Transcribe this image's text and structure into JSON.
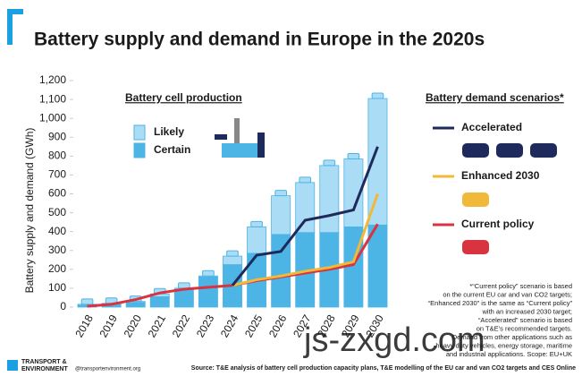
{
  "chart_data": {
    "type": "bar",
    "title": "Battery supply and demand in Europe in the 2020s",
    "y_label": "Battery supply and demand (GWh)",
    "supply_heading": "Battery cell production",
    "demand_heading": "Battery demand scenarios*",
    "categories": [
      "2018",
      "2019",
      "2020",
      "2021",
      "2022",
      "2023",
      "2024",
      "2025",
      "2026",
      "2027",
      "2028",
      "2029",
      "2030"
    ],
    "ylim": [
      0,
      1200
    ],
    "yticks": [
      0,
      100,
      200,
      300,
      400,
      500,
      600,
      700,
      800,
      900,
      {
        "value": 1000,
        "label": "1,000"
      },
      {
        "value": 1100,
        "label": "1,100"
      },
      {
        "value": 1200,
        "label": "1,200"
      }
    ],
    "series": [
      {
        "name": "Certain",
        "type": "bar",
        "color": "#4db4e6",
        "values": [
          10,
          15,
          25,
          55,
          95,
          160,
          225,
          285,
          385,
          395,
          395,
          425,
          435
        ]
      },
      {
        "name": "Likely",
        "type": "bar",
        "color": "#aadcf5",
        "values": [
          5,
          5,
          5,
          15,
          5,
          5,
          45,
          140,
          205,
          265,
          355,
          360,
          670
        ]
      },
      {
        "name": "Accelerated",
        "type": "line",
        "color": "#1f2a5c",
        "values": [
          null,
          null,
          null,
          null,
          null,
          null,
          115,
          275,
          295,
          460,
          485,
          515,
          850
        ]
      },
      {
        "name": "Enhanced 2030",
        "type": "line",
        "color": "#f0b93a",
        "values": [
          null,
          null,
          null,
          null,
          null,
          null,
          115,
          145,
          165,
          190,
          210,
          240,
          600
        ]
      },
      {
        "name": "Current policy",
        "type": "line",
        "color": "#d9333f",
        "values": [
          5,
          15,
          40,
          75,
          95,
          105,
          115,
          140,
          160,
          180,
          200,
          225,
          440
        ]
      }
    ],
    "footnote": [
      "*“Current policy” scenario is based",
      "on the current EU car and van CO2 targets;",
      "“Enhanced 2030” is the same as “Current policy”",
      "with an increased 2030 target;",
      "“Accelerated” scenario is based",
      "on T&E’s recommended targets.",
      "Demand from other applications such as",
      "heavy duty vehicles, energy storage, maritime",
      "and industrial applications. Scope: EU+UK"
    ],
    "source": "Source: T&E analysis of battery cell production capacity plans, T&E modelling of the EU car and van CO2 targets and CES Online",
    "brand": [
      "TRANSPORT &",
      "ENVIRONMENT"
    ],
    "handle": "@transportenvironment.org",
    "watermark": "js-zxgd.com"
  }
}
